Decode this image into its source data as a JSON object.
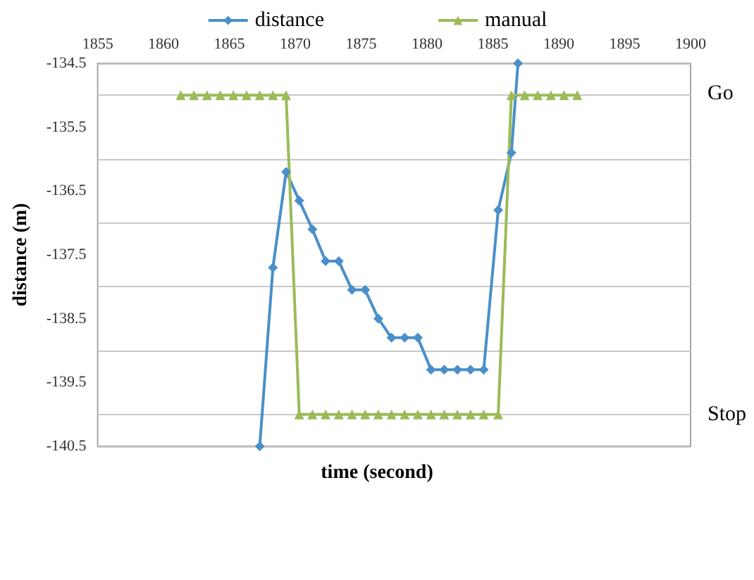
{
  "chart_data": {
    "type": "line",
    "xlabel": "time (second)",
    "ylabel": "distance (m)",
    "xlim": [
      1855,
      1900
    ],
    "xticks": [
      1855,
      1860,
      1865,
      1870,
      1875,
      1880,
      1885,
      1890,
      1895,
      1900
    ],
    "ylim": [
      -140.5,
      -134.5
    ],
    "yticks": [
      -140.5,
      -139.5,
      -138.5,
      -137.5,
      -136.5,
      -135.5,
      -134.5
    ],
    "grid": "y",
    "legend": "top",
    "annotations": [
      "Go",
      "Stop"
    ],
    "series": [
      {
        "name": "distance",
        "color": "#4a8fc9",
        "marker": "diamond",
        "x": [
          1867.3,
          1868.3,
          1869.3,
          1870.3,
          1871.3,
          1872.3,
          1873.3,
          1874.3,
          1875.3,
          1876.3,
          1877.3,
          1878.3,
          1879.3,
          1880.3,
          1881.3,
          1882.3,
          1883.3,
          1884.3,
          1885.4,
          1886.4,
          1886.9
        ],
        "values": [
          -140.5,
          -137.7,
          -136.2,
          -136.65,
          -137.1,
          -137.6,
          -137.6,
          -138.05,
          -138.05,
          -138.5,
          -138.8,
          -138.8,
          -138.8,
          -139.3,
          -139.3,
          -139.3,
          -139.3,
          -139.3,
          -136.8,
          -135.9,
          -134.5
        ]
      },
      {
        "name": "manual",
        "color": "#9bbb59",
        "marker": "triangle",
        "x": [
          1861.3,
          1862.3,
          1863.3,
          1864.3,
          1865.3,
          1866.3,
          1867.3,
          1868.3,
          1869.3,
          1870.3,
          1871.3,
          1872.3,
          1873.3,
          1874.3,
          1875.3,
          1876.3,
          1877.3,
          1878.3,
          1879.3,
          1880.3,
          1881.3,
          1882.3,
          1883.3,
          1884.3,
          1885.4,
          1886.4,
          1887.4,
          1888.4,
          1889.4,
          1890.4,
          1891.4
        ],
        "values": [
          -135,
          -135,
          -135,
          -135,
          -135,
          -135,
          -135,
          -135,
          -135,
          -140,
          -140,
          -140,
          -140,
          -140,
          -140,
          -140,
          -140,
          -140,
          -140,
          -140,
          -140,
          -140,
          -140,
          -140,
          -140,
          -135,
          -135,
          -135,
          -135,
          -135,
          -135
        ]
      }
    ]
  }
}
